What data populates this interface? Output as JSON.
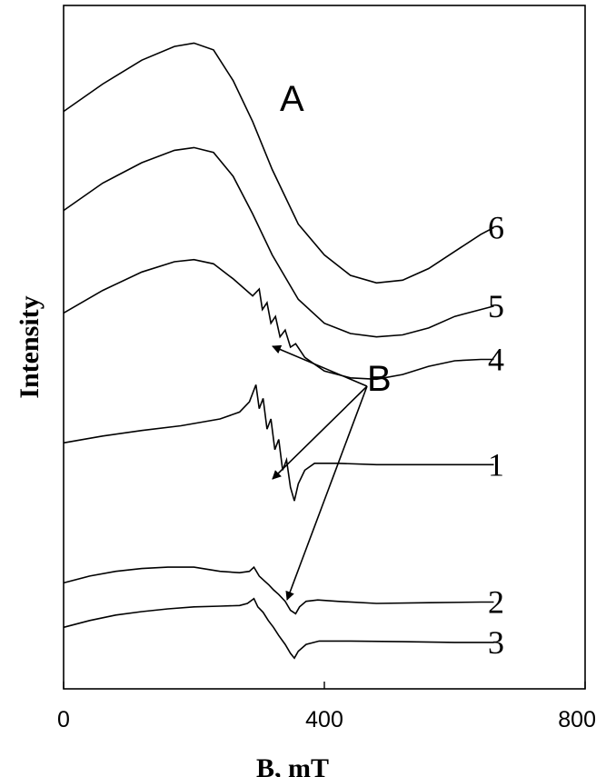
{
  "chart_data": {
    "type": "line",
    "title": "",
    "xlabel": "B, mT",
    "ylabel": "Intensity",
    "xlim": [
      0,
      800
    ],
    "x_ticks": [
      "0",
      "400",
      "800"
    ],
    "y_ticks": [],
    "grid": false,
    "annotations": [
      {
        "text": "A"
      },
      {
        "text": "B"
      }
    ],
    "series": [
      {
        "name": "6",
        "points": [
          [
            0,
            0.845
          ],
          [
            60,
            0.885
          ],
          [
            120,
            0.92
          ],
          [
            170,
            0.94
          ],
          [
            200,
            0.945
          ],
          [
            230,
            0.935
          ],
          [
            260,
            0.89
          ],
          [
            290,
            0.83
          ],
          [
            320,
            0.76
          ],
          [
            360,
            0.68
          ],
          [
            400,
            0.635
          ],
          [
            440,
            0.605
          ],
          [
            480,
            0.594
          ],
          [
            520,
            0.598
          ],
          [
            560,
            0.615
          ],
          [
            600,
            0.64
          ],
          [
            640,
            0.665
          ],
          [
            660,
            0.675
          ]
        ]
      },
      {
        "name": "5",
        "points": [
          [
            0,
            0.7
          ],
          [
            60,
            0.74
          ],
          [
            120,
            0.77
          ],
          [
            170,
            0.788
          ],
          [
            200,
            0.792
          ],
          [
            230,
            0.785
          ],
          [
            260,
            0.75
          ],
          [
            290,
            0.695
          ],
          [
            320,
            0.635
          ],
          [
            360,
            0.57
          ],
          [
            400,
            0.535
          ],
          [
            440,
            0.52
          ],
          [
            480,
            0.515
          ],
          [
            520,
            0.518
          ],
          [
            560,
            0.528
          ],
          [
            600,
            0.545
          ],
          [
            640,
            0.555
          ],
          [
            660,
            0.56
          ]
        ]
      },
      {
        "name": "4",
        "points": [
          [
            0,
            0.55
          ],
          [
            60,
            0.583
          ],
          [
            120,
            0.61
          ],
          [
            170,
            0.625
          ],
          [
            200,
            0.628
          ],
          [
            230,
            0.622
          ],
          [
            260,
            0.6
          ],
          [
            290,
            0.575
          ],
          [
            300,
            0.585
          ],
          [
            305,
            0.555
          ],
          [
            312,
            0.565
          ],
          [
            318,
            0.535
          ],
          [
            325,
            0.545
          ],
          [
            332,
            0.515
          ],
          [
            340,
            0.525
          ],
          [
            348,
            0.5
          ],
          [
            356,
            0.505
          ],
          [
            370,
            0.485
          ],
          [
            400,
            0.465
          ],
          [
            440,
            0.455
          ],
          [
            480,
            0.453
          ],
          [
            520,
            0.46
          ],
          [
            560,
            0.472
          ],
          [
            600,
            0.48
          ],
          [
            640,
            0.482
          ],
          [
            660,
            0.482
          ]
        ]
      },
      {
        "name": "1",
        "points": [
          [
            0,
            0.36
          ],
          [
            60,
            0.37
          ],
          [
            120,
            0.378
          ],
          [
            180,
            0.385
          ],
          [
            240,
            0.395
          ],
          [
            270,
            0.405
          ],
          [
            285,
            0.42
          ],
          [
            295,
            0.445
          ],
          [
            300,
            0.41
          ],
          [
            306,
            0.425
          ],
          [
            312,
            0.38
          ],
          [
            318,
            0.395
          ],
          [
            324,
            0.35
          ],
          [
            330,
            0.365
          ],
          [
            336,
            0.32
          ],
          [
            342,
            0.335
          ],
          [
            348,
            0.295
          ],
          [
            354,
            0.275
          ],
          [
            360,
            0.3
          ],
          [
            370,
            0.32
          ],
          [
            385,
            0.33
          ],
          [
            420,
            0.33
          ],
          [
            480,
            0.328
          ],
          [
            560,
            0.328
          ],
          [
            640,
            0.328
          ],
          [
            660,
            0.328
          ]
        ]
      },
      {
        "name": "2",
        "points": [
          [
            0,
            0.155
          ],
          [
            40,
            0.165
          ],
          [
            80,
            0.172
          ],
          [
            120,
            0.176
          ],
          [
            160,
            0.178
          ],
          [
            200,
            0.178
          ],
          [
            240,
            0.172
          ],
          [
            270,
            0.17
          ],
          [
            285,
            0.172
          ],
          [
            292,
            0.178
          ],
          [
            300,
            0.165
          ],
          [
            308,
            0.158
          ],
          [
            315,
            0.152
          ],
          [
            322,
            0.145
          ],
          [
            330,
            0.138
          ],
          [
            340,
            0.128
          ],
          [
            348,
            0.115
          ],
          [
            356,
            0.11
          ],
          [
            362,
            0.12
          ],
          [
            372,
            0.128
          ],
          [
            390,
            0.13
          ],
          [
            420,
            0.128
          ],
          [
            480,
            0.125
          ],
          [
            560,
            0.126
          ],
          [
            640,
            0.127
          ],
          [
            660,
            0.127
          ]
        ]
      },
      {
        "name": "3",
        "points": [
          [
            0,
            0.09
          ],
          [
            40,
            0.1
          ],
          [
            80,
            0.108
          ],
          [
            120,
            0.113
          ],
          [
            160,
            0.117
          ],
          [
            200,
            0.12
          ],
          [
            240,
            0.121
          ],
          [
            270,
            0.122
          ],
          [
            282,
            0.125
          ],
          [
            292,
            0.132
          ],
          [
            298,
            0.12
          ],
          [
            306,
            0.112
          ],
          [
            314,
            0.1
          ],
          [
            322,
            0.09
          ],
          [
            330,
            0.078
          ],
          [
            340,
            0.065
          ],
          [
            348,
            0.052
          ],
          [
            354,
            0.045
          ],
          [
            360,
            0.055
          ],
          [
            372,
            0.065
          ],
          [
            392,
            0.07
          ],
          [
            440,
            0.07
          ],
          [
            520,
            0.069
          ],
          [
            600,
            0.068
          ],
          [
            660,
            0.068
          ]
        ]
      }
    ]
  }
}
